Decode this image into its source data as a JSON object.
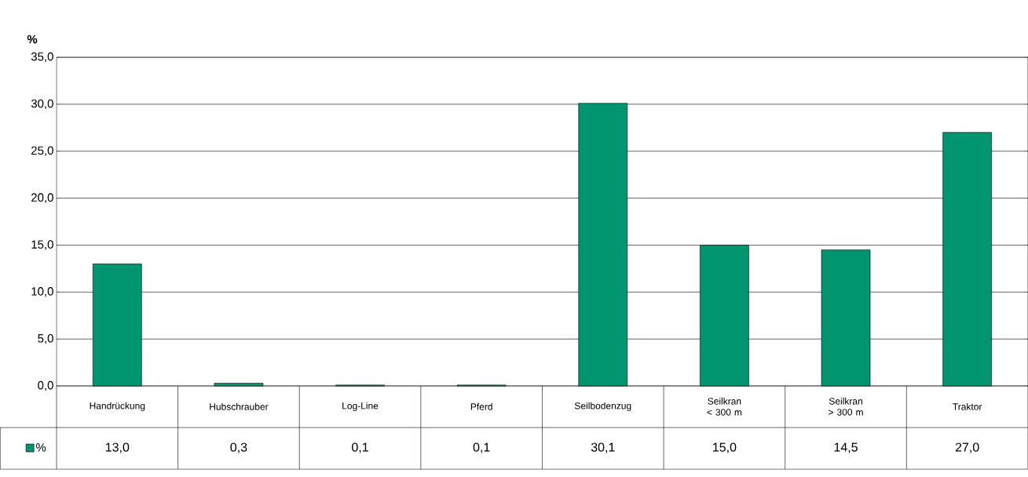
{
  "chart_data": {
    "type": "bar",
    "ylabel": "%",
    "categories": [
      "Handrückung",
      "Hubschrauber",
      "Log-Line",
      "Pferd",
      "Seilbodenzug",
      "Seilkran < 300 m",
      "Seilkran > 300 m",
      "Traktor"
    ],
    "series": [
      {
        "name": "%",
        "color": "#00956f",
        "values": [
          13.0,
          0.3,
          0.1,
          0.1,
          30.1,
          15.0,
          14.5,
          27.0
        ]
      }
    ],
    "value_labels": [
      "13,0",
      "0,3",
      "0,1",
      "0,1",
      "30,1",
      "15,0",
      "14,5",
      "27,0"
    ],
    "ylim": [
      0,
      35
    ],
    "yticks": [
      {
        "value": 0,
        "label": "0,0"
      },
      {
        "value": 5,
        "label": "5,0"
      },
      {
        "value": 10,
        "label": "10,0"
      },
      {
        "value": 15,
        "label": "15,0"
      },
      {
        "value": 20,
        "label": "20,0"
      },
      {
        "value": 25,
        "label": "25,0"
      },
      {
        "value": 30,
        "label": "30,0"
      },
      {
        "value": 35,
        "label": "35,0"
      }
    ],
    "grid": "y",
    "legend": "bottom left"
  }
}
